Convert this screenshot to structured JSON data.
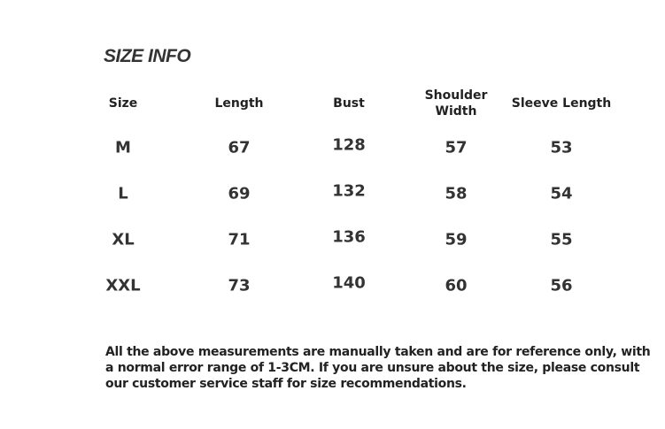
{
  "title": "SIZE INFO",
  "headers": [
    "Size",
    "Length",
    "Bust",
    "Shoulder\nWidth",
    "Sleeve Length"
  ],
  "rows": [
    [
      "M",
      "67",
      "128",
      "57",
      "53"
    ],
    [
      "L",
      "69",
      "132",
      "58",
      "54"
    ],
    [
      "XL",
      "71",
      "136",
      "59",
      "55"
    ],
    [
      "XXL",
      "73",
      "140",
      "60",
      "56"
    ]
  ],
  "note": "All the above measurements are manually taken and are for reference only, with a normal error range of 1-3CM. If you are unsure about the size, please consult our customer service staff for size recommendations."
}
